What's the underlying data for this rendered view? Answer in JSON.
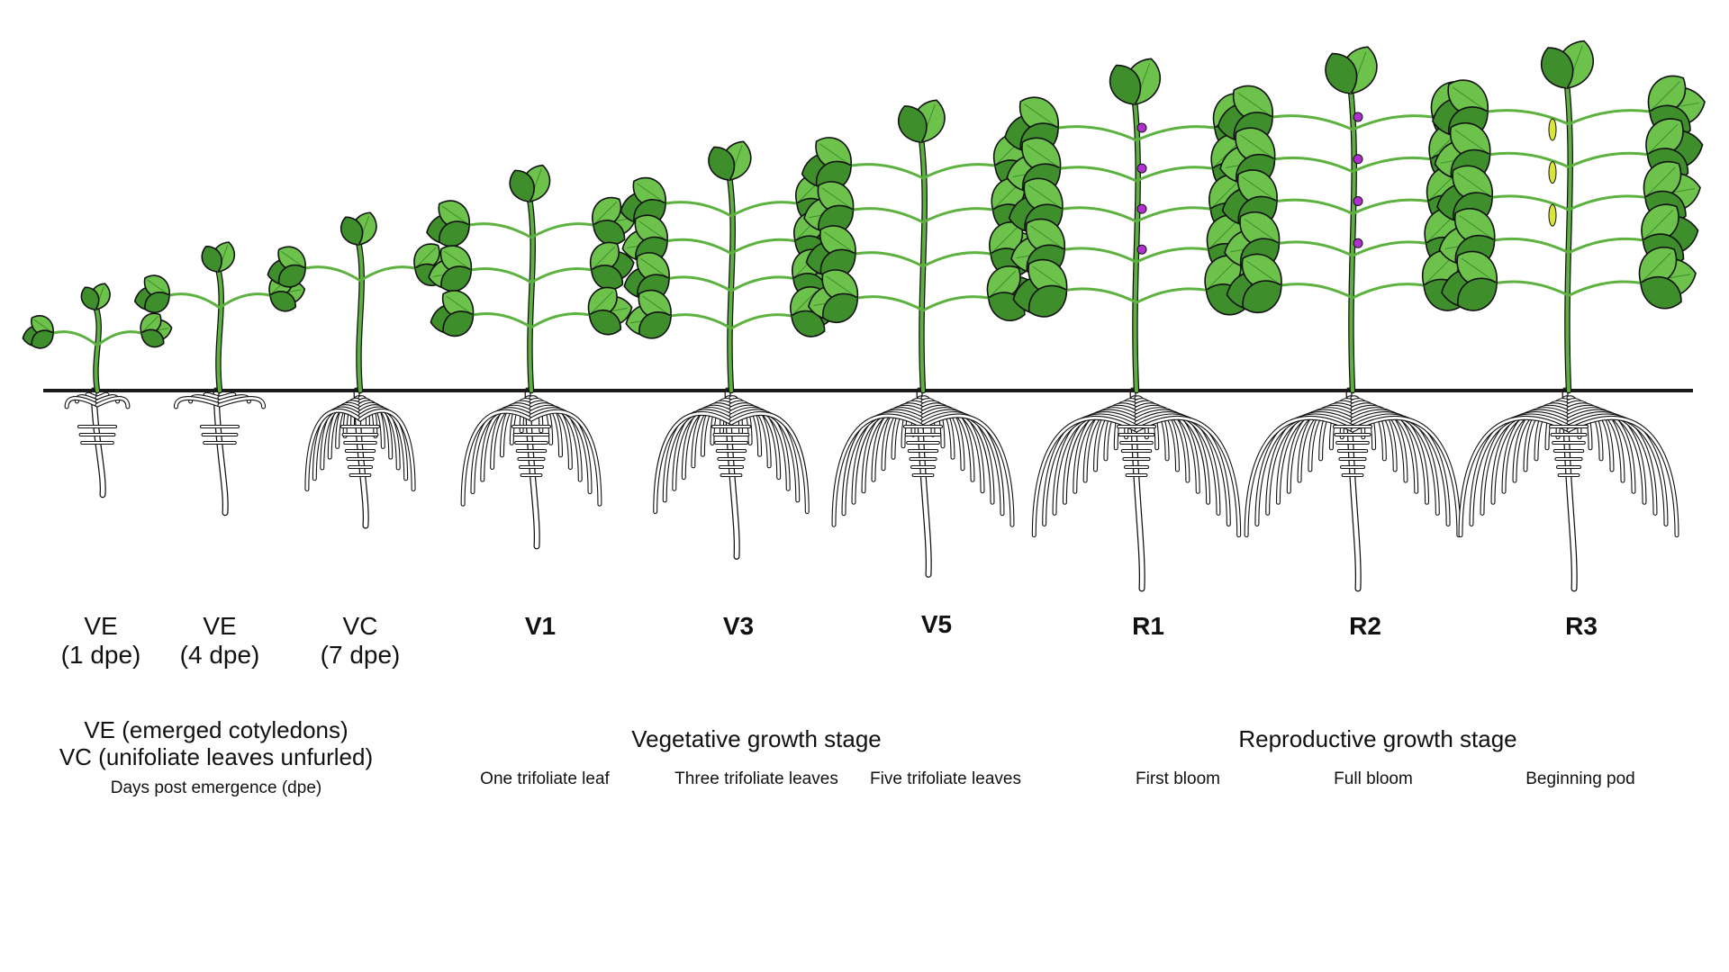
{
  "colors": {
    "leaf": "#6cc24a",
    "leaf_dark": "#3e8e2c",
    "stem": "#5db23f",
    "outline": "#111111",
    "ground": "#1a1a1a",
    "root_fill": "#ffffff",
    "flower": "#b02fd0",
    "pod": "#d9e53a"
  },
  "stages": [
    {
      "code": "VE",
      "dpe": "(1 dpe)",
      "size": 0.18
    },
    {
      "code": "VE",
      "dpe": "(4 dpe)",
      "size": 0.32
    },
    {
      "code": "VC",
      "dpe": "(7 dpe)",
      "size": 0.42
    },
    {
      "code": "V1",
      "sub": "One trifoliate leaf",
      "size": 0.58
    },
    {
      "code": "V3",
      "sub": "Three trifoliate leaves",
      "size": 0.66
    },
    {
      "code": "V5",
      "sub": "Five trifoliate leaves",
      "size": 0.8
    },
    {
      "code": "R1",
      "sub": "First bloom",
      "size": 0.94,
      "marker": "flower"
    },
    {
      "code": "R2",
      "sub": "Full bloom",
      "size": 0.98,
      "marker": "flower"
    },
    {
      "code": "R3",
      "sub": "Beginning pod",
      "size": 1.0,
      "marker": "pod"
    }
  ],
  "early_legend": {
    "line1": "VE (emerged cotyledons)",
    "line2": "VC (unifoliate leaves unfurled)",
    "line3": "Days post emergence (dpe)"
  },
  "groups": {
    "vegetative": "Vegetative growth stage",
    "reproductive": "Reproductive growth stage"
  }
}
